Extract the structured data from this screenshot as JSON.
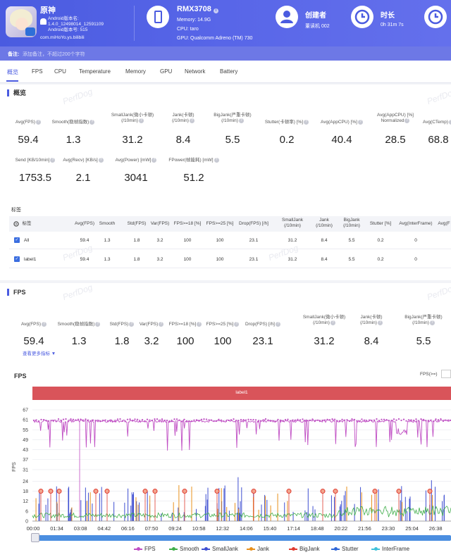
{
  "app": {
    "name": "原神",
    "android_version_label": "Android版本名:",
    "android_version_value": "1.4.0_12498014_12591109",
    "android_code_label": "Android版本号: 515",
    "package": "com.miHoYo.ys.bilibili"
  },
  "device": {
    "name": "RMX3708",
    "memory": "Memory: 14.9G",
    "cpu": "CPU: taro",
    "gpu": "GPU: Qualcomm Adreno (TM) 730"
  },
  "creator": {
    "title": "创建者",
    "value": "董读机 002"
  },
  "duration": {
    "title": "时长",
    "value": "0h 31m 7s"
  },
  "note": {
    "label": "备注:",
    "placeholder": "添加备注，不超过200个字符"
  },
  "tabs": [
    "概览",
    "FPS",
    "CPU",
    "Temperature",
    "Memory",
    "GPU",
    "Network",
    "Battery"
  ],
  "overview": {
    "title": "概览",
    "watermark": "PerfDog",
    "metrics_row1": [
      {
        "label": "Avg(FPS)",
        "value": "59.4"
      },
      {
        "label": "Smooth(稳帧指数)",
        "value": "1.3"
      },
      {
        "label": "SmallJank(微小卡顿)\n(/10min)",
        "value": "31.2"
      },
      {
        "label": "Jank(卡顿)\n(/10min)",
        "value": "8.4"
      },
      {
        "label": "BigJank(严重卡顿)\n(/10min)",
        "value": "5.5"
      },
      {
        "label": "Stutter(卡顿率) [%]",
        "value": "0.2"
      },
      {
        "label": "Avg(AppCPU) [%]",
        "value": "40.4"
      },
      {
        "label": "Avg(AppCPU) [%]\nNormalized",
        "value": "28.5"
      },
      {
        "label": "Avg(CTemp)",
        "value": "68.8"
      }
    ],
    "metrics_row2": [
      {
        "label": "Send [KB/10min]",
        "value": "1753.5"
      },
      {
        "label": "Avg(Recv) [KB/s]",
        "value": "2.1"
      },
      {
        "label": "Avg(Power) [mW]",
        "value": "3041"
      },
      {
        "label": "FPower(帧能耗) [mW]",
        "value": "51.2"
      }
    ]
  },
  "labels_table": {
    "title": "标签",
    "headers": [
      "标签",
      "Avg(FPS)",
      "Smooth",
      "Std(FPS)",
      "Var(FPS)",
      "FPS>=18 [%]",
      "FPS>=25 [%]",
      "Drop(FPS) [/h]",
      "SmallJank\n(/10min)",
      "Jank\n(/10min)",
      "BigJank\n(/10min)",
      "Stutter [%]",
      "Avg(InterFrame)",
      "Avg(F"
    ],
    "rows": [
      [
        "All",
        "59.4",
        "1.3",
        "1.8",
        "3.2",
        "100",
        "100",
        "23.1",
        "31.2",
        "8.4",
        "5.5",
        "0.2",
        "0"
      ],
      [
        "label1",
        "59.4",
        "1.3",
        "1.8",
        "3.2",
        "100",
        "100",
        "23.1",
        "31.2",
        "8.4",
        "5.5",
        "0.2",
        "0"
      ]
    ]
  },
  "fps_section": {
    "title": "FPS",
    "metrics": [
      {
        "label": "Avg(FPS)",
        "value": "59.4"
      },
      {
        "label": "Smooth(稳帧指数)",
        "value": "1.3"
      },
      {
        "label": "Std(FPS)",
        "value": "1.8"
      },
      {
        "label": "Var(FPS)",
        "value": "3.2"
      },
      {
        "label": "FPS>=18 [%]",
        "value": "100"
      },
      {
        "label": "FPS>=25 [%]",
        "value": "100"
      },
      {
        "label": "Drop(FPS) [/h]",
        "value": "23.1"
      },
      {
        "label": "SmallJank(微小卡顿)\n(/10min)",
        "value": "31.2"
      },
      {
        "label": "Jank(卡顿)\n(/10min)",
        "value": "8.4"
      },
      {
        "label": "BigJank(严重卡顿)\n(/10min)",
        "value": "5.5"
      }
    ],
    "more_link": "查看更多指标 ▼"
  },
  "chart_data": {
    "type": "line",
    "title": "FPS",
    "ylabel": "FPS",
    "label_band": "label1",
    "threshold_label": "FPS(>=)",
    "yticks": [
      0,
      6,
      12,
      18,
      24,
      31,
      37,
      43,
      49,
      55,
      61,
      67
    ],
    "ylim": [
      0,
      67
    ],
    "xticks": [
      "00:00",
      "01:34",
      "03:08",
      "04:42",
      "06:16",
      "07:50",
      "09:24",
      "10:58",
      "12:32",
      "14:06",
      "15:40",
      "17:14",
      "18:48",
      "20:22",
      "21:56",
      "23:30",
      "25:04",
      "26:38"
    ],
    "series": [
      {
        "name": "FPS",
        "color": "#c04fc4",
        "baseline": 60,
        "dip_min": 42
      },
      {
        "name": "Smooth",
        "color": "#3fae49",
        "baseline": 2
      },
      {
        "name": "SmallJank",
        "color": "#3f4fd1"
      },
      {
        "name": "Jank",
        "color": "#e8901c"
      },
      {
        "name": "BigJank",
        "color": "#e03b2f"
      },
      {
        "name": "Stutter",
        "color": "#2f66d6"
      },
      {
        "name": "InterFrame",
        "color": "#3fc1d9"
      }
    ]
  },
  "legend": [
    {
      "name": "FPS",
      "color": "#c04fc4"
    },
    {
      "name": "Smooth",
      "color": "#3fae49"
    },
    {
      "name": "SmallJank",
      "color": "#3f4fd1"
    },
    {
      "name": "Jank",
      "color": "#e8901c"
    },
    {
      "name": "BigJank",
      "color": "#e03b2f"
    },
    {
      "name": "Stutter",
      "color": "#2f66d6"
    },
    {
      "name": "InterFrame",
      "color": "#3fc1d9"
    }
  ]
}
